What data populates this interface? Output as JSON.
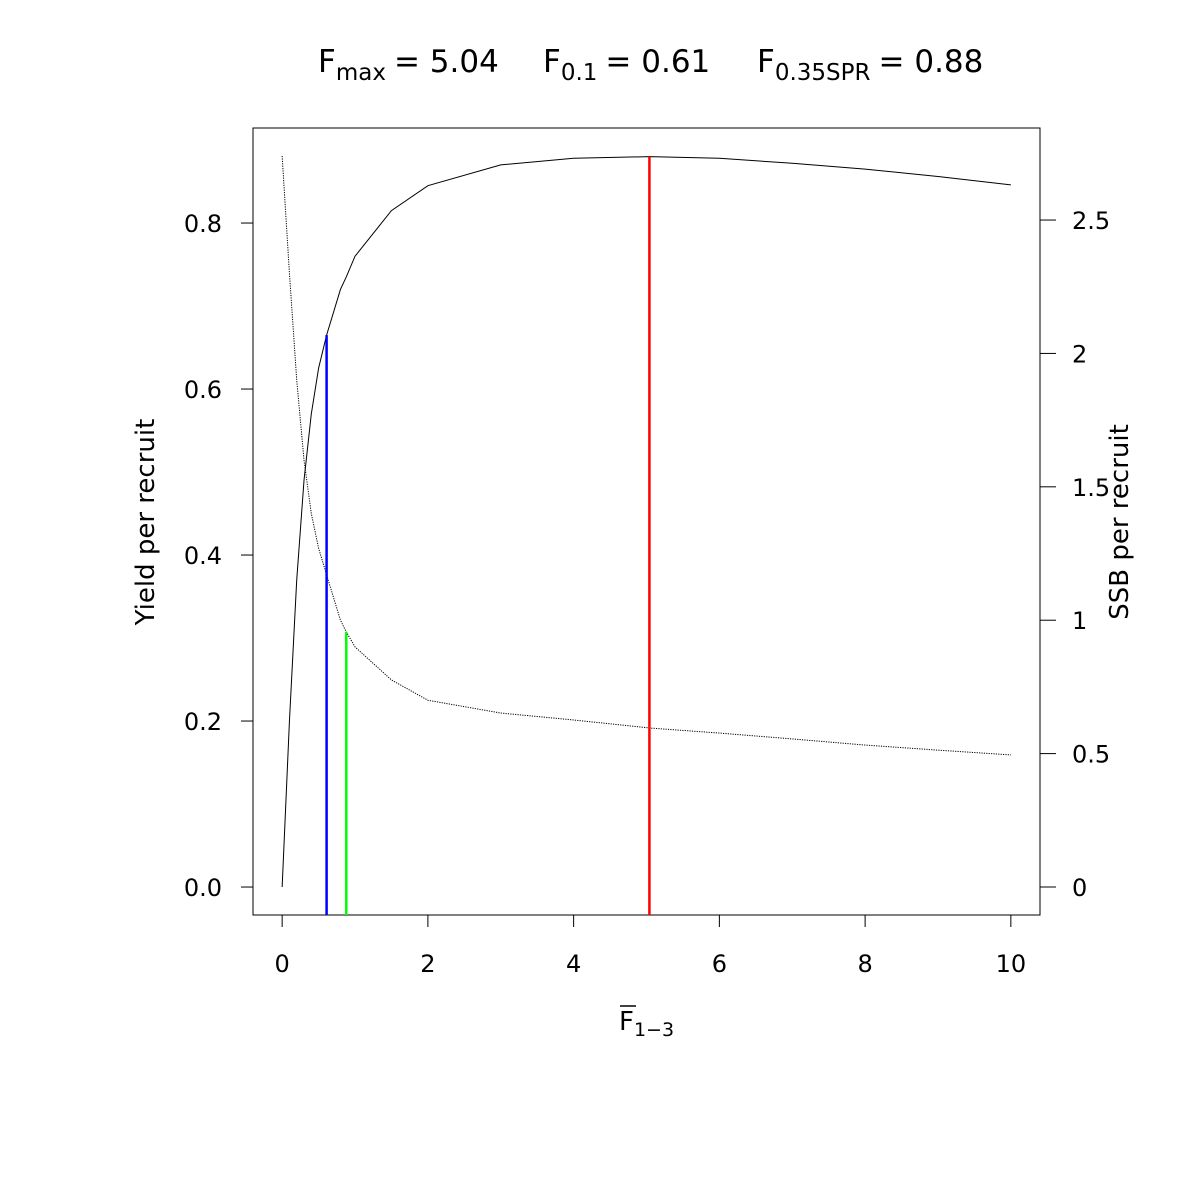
{
  "chart_data": {
    "type": "line",
    "title": [
      {
        "symbol": "F",
        "subscript": "max",
        "text": "= 5.04"
      },
      {
        "symbol": "F",
        "subscript": "0.1",
        "text": "= 0.61"
      },
      {
        "symbol": "F",
        "subscript": "0.35SPR",
        "text": "= 0.88"
      }
    ],
    "xlabel": {
      "symbol": "F",
      "subscript": "1−3"
    },
    "ylabel": "Yield per recruit",
    "y2label": "SSB per recruit",
    "x": [
      0,
      0.1,
      0.2,
      0.3,
      0.4,
      0.5,
      0.61,
      0.8,
      0.88,
      1,
      1.5,
      2,
      3,
      4,
      5.04,
      6,
      7,
      8,
      9,
      10
    ],
    "series": [
      {
        "name": "Yield per recruit",
        "color": "#000000",
        "dash": "solid",
        "values": [
          0,
          0.2,
          0.37,
          0.49,
          0.57,
          0.625,
          0.665,
          0.72,
          0.735,
          0.76,
          0.815,
          0.845,
          0.87,
          0.878,
          0.88,
          0.878,
          0.872,
          0.865,
          0.856,
          0.846
        ]
      },
      {
        "name": "SSB per recruit",
        "color": "#000000",
        "dash": "dotted",
        "axis": "y2",
        "values": [
          2.74,
          2.3,
          1.9,
          1.6,
          1.4,
          1.27,
          1.17,
          1.0,
          0.956,
          0.9,
          0.776,
          0.7,
          0.652,
          0.626,
          0.596,
          0.577,
          0.555,
          0.532,
          0.513,
          0.495
        ]
      }
    ],
    "reference_lines": [
      {
        "x": 5.04,
        "y": 0.88,
        "color": "#ff0000"
      },
      {
        "x": 0.61,
        "y": 0.665,
        "color": "#0000ff"
      },
      {
        "x": 0.88,
        "y": 0.956,
        "axis": "y2",
        "color": "#00ff00"
      }
    ],
    "xlim": [
      -0.4,
      10.4
    ],
    "ylim": [
      -0.0337,
      0.9145
    ],
    "y2lim": [
      -0.105,
      2.845
    ],
    "xticks": [
      0,
      2,
      4,
      6,
      8,
      10
    ],
    "yticks": [
      {
        "value": 0,
        "label": "0.0"
      },
      0.2,
      0.4,
      0.6,
      0.8
    ],
    "y2ticks": [
      0,
      0.5,
      1,
      1.5,
      2,
      2.5
    ]
  }
}
